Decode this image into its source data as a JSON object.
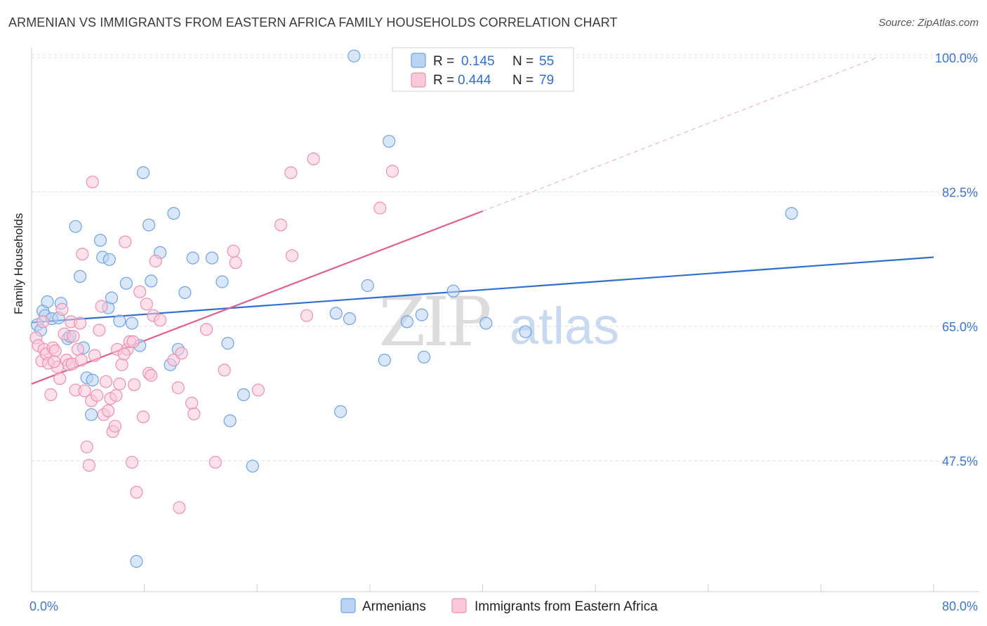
{
  "title": "ARMENIAN VS IMMIGRANTS FROM EASTERN AFRICA FAMILY HOUSEHOLDS CORRELATION CHART",
  "source": "Source: ZipAtlas.com",
  "watermark": {
    "zip": "ZIP",
    "atlas": "atlas"
  },
  "legend_stats": [
    {
      "r_label": "R =",
      "r": "0.145",
      "n_label": "N =",
      "n": "55",
      "color": "#a8c8f0"
    },
    {
      "r_label": "R =",
      "r": "0.444",
      "n_label": "N =",
      "n": "79",
      "color": "#f6b8cc"
    }
  ],
  "chart_data": {
    "type": "scatter",
    "title": "ARMENIAN VS IMMIGRANTS FROM EASTERN AFRICA FAMILY HOUSEHOLDS CORRELATION CHART",
    "xlabel": "",
    "ylabel": "Family Households",
    "xlim": [
      0,
      80
    ],
    "ylim": [
      32,
      102
    ],
    "x_tick_labels": [
      "0.0%",
      "80.0%"
    ],
    "y_ticks": [
      47.5,
      65.0,
      82.5,
      100.0
    ],
    "y_tick_labels": [
      "47.5%",
      "65.0%",
      "82.5%",
      "100.0%"
    ],
    "grid": true,
    "legend_position": "bottom",
    "series": [
      {
        "name": "Armenians",
        "color": "#6fa3e6",
        "fill": "#b9d3f3",
        "trend": {
          "x": [
            0,
            80
          ],
          "y": [
            65.5,
            74.0
          ],
          "color": "#2f6fce"
        },
        "points": [
          [
            0.5,
            65.2
          ],
          [
            0.8,
            64.5
          ],
          [
            1.0,
            67.0
          ],
          [
            1.2,
            66.4
          ],
          [
            1.4,
            68.2
          ],
          [
            1.8,
            66.0
          ],
          [
            2.4,
            66.1
          ],
          [
            2.6,
            68.0
          ],
          [
            3.2,
            63.4
          ],
          [
            3.4,
            63.7
          ],
          [
            3.9,
            78.0
          ],
          [
            4.3,
            71.5
          ],
          [
            4.6,
            62.2
          ],
          [
            4.9,
            58.3
          ],
          [
            5.3,
            53.5
          ],
          [
            5.4,
            58.0
          ],
          [
            6.1,
            76.2
          ],
          [
            6.3,
            74.0
          ],
          [
            6.8,
            67.4
          ],
          [
            6.9,
            73.7
          ],
          [
            7.1,
            68.7
          ],
          [
            7.8,
            65.7
          ],
          [
            8.4,
            70.6
          ],
          [
            8.9,
            65.4
          ],
          [
            9.6,
            62.5
          ],
          [
            9.9,
            85.0
          ],
          [
            10.4,
            78.2
          ],
          [
            10.6,
            70.9
          ],
          [
            11.4,
            74.6
          ],
          [
            12.3,
            60.0
          ],
          [
            12.6,
            79.7
          ],
          [
            13.0,
            62.0
          ],
          [
            13.6,
            69.4
          ],
          [
            14.3,
            73.9
          ],
          [
            16.0,
            73.9
          ],
          [
            16.9,
            70.8
          ],
          [
            17.4,
            62.8
          ],
          [
            17.6,
            52.7
          ],
          [
            18.8,
            56.1
          ],
          [
            19.6,
            46.8
          ],
          [
            9.3,
            34.4
          ],
          [
            28.6,
            100.2
          ],
          [
            28.2,
            66.0
          ],
          [
            27.0,
            66.7
          ],
          [
            27.4,
            53.9
          ],
          [
            31.7,
            89.1
          ],
          [
            31.3,
            60.6
          ],
          [
            33.3,
            65.6
          ],
          [
            34.8,
            61.0
          ],
          [
            34.6,
            66.5
          ],
          [
            29.8,
            70.3
          ],
          [
            37.4,
            69.6
          ],
          [
            40.3,
            65.4
          ],
          [
            43.8,
            64.3
          ],
          [
            67.4,
            79.7
          ]
        ]
      },
      {
        "name": "Immigrants from Eastern Africa",
        "color": "#ef8fae",
        "fill": "#f9c9d8",
        "trend": {
          "x": [
            0,
            40
          ],
          "y": [
            57.5,
            80.0
          ],
          "color": "#e05f8c"
        },
        "trend_extension": {
          "x": [
            40,
            75
          ],
          "y": [
            80.0,
            100.0
          ]
        },
        "points": [
          [
            0.4,
            63.5
          ],
          [
            0.6,
            62.5
          ],
          [
            0.9,
            60.5
          ],
          [
            1.1,
            62.0
          ],
          [
            1.3,
            61.4
          ],
          [
            1.5,
            60.2
          ],
          [
            1.7,
            56.1
          ],
          [
            1.9,
            62.2
          ],
          [
            2.1,
            61.8
          ],
          [
            2.3,
            59.7
          ],
          [
            2.5,
            58.2
          ],
          [
            2.7,
            67.2
          ],
          [
            2.9,
            64.0
          ],
          [
            3.1,
            60.6
          ],
          [
            3.3,
            60.0
          ],
          [
            3.5,
            65.6
          ],
          [
            3.7,
            63.7
          ],
          [
            3.9,
            56.7
          ],
          [
            4.1,
            62.0
          ],
          [
            4.3,
            65.4
          ],
          [
            4.5,
            74.4
          ],
          [
            4.7,
            56.6
          ],
          [
            4.9,
            49.3
          ],
          [
            5.1,
            46.9
          ],
          [
            5.3,
            55.3
          ],
          [
            5.4,
            83.8
          ],
          [
            5.6,
            61.2
          ],
          [
            5.8,
            56.0
          ],
          [
            6.0,
            64.5
          ],
          [
            6.2,
            67.6
          ],
          [
            6.4,
            53.5
          ],
          [
            6.6,
            57.8
          ],
          [
            6.8,
            54.0
          ],
          [
            7.0,
            55.6
          ],
          [
            7.2,
            51.3
          ],
          [
            7.4,
            52.0
          ],
          [
            7.6,
            62.0
          ],
          [
            7.8,
            57.5
          ],
          [
            8.0,
            60.0
          ],
          [
            8.3,
            76.0
          ],
          [
            8.5,
            62.0
          ],
          [
            8.7,
            63.0
          ],
          [
            8.9,
            47.3
          ],
          [
            9.1,
            57.4
          ],
          [
            9.3,
            43.4
          ],
          [
            9.6,
            69.5
          ],
          [
            9.9,
            53.2
          ],
          [
            10.2,
            67.9
          ],
          [
            10.4,
            58.9
          ],
          [
            10.6,
            58.6
          ],
          [
            10.8,
            66.4
          ],
          [
            11.0,
            73.5
          ],
          [
            11.4,
            65.8
          ],
          [
            12.6,
            60.6
          ],
          [
            13.0,
            57.0
          ],
          [
            13.3,
            61.5
          ],
          [
            13.1,
            41.4
          ],
          [
            14.2,
            55.0
          ],
          [
            14.4,
            53.6
          ],
          [
            15.5,
            64.6
          ],
          [
            16.3,
            47.3
          ],
          [
            17.1,
            59.3
          ],
          [
            17.9,
            74.8
          ],
          [
            18.1,
            73.3
          ],
          [
            20.1,
            56.7
          ],
          [
            22.1,
            78.2
          ],
          [
            23.1,
            74.2
          ],
          [
            23.0,
            85.0
          ],
          [
            24.4,
            66.4
          ],
          [
            25.0,
            86.8
          ],
          [
            30.9,
            80.4
          ],
          [
            32.0,
            85.2
          ],
          [
            1.0,
            65.6
          ],
          [
            2.0,
            60.4
          ],
          [
            3.6,
            60.1
          ],
          [
            4.4,
            60.6
          ],
          [
            7.5,
            56.0
          ],
          [
            8.2,
            61.4
          ],
          [
            9.0,
            63.0
          ]
        ]
      }
    ]
  }
}
